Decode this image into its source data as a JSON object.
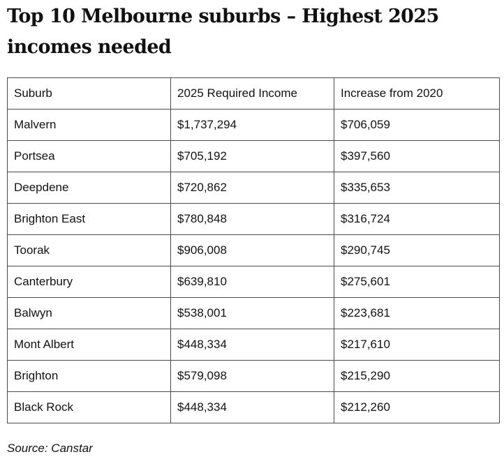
{
  "article": {
    "title": "Top 10 Melbourne suburbs – Highest 2025 incomes needed",
    "source": "Source: Canstar"
  },
  "table": {
    "headers": [
      "Suburb",
      "2025 Required Income",
      "Increase from 2020"
    ],
    "rows": [
      [
        "Malvern",
        "$1,737,294",
        "$706,059"
      ],
      [
        "Portsea",
        "$705,192",
        "$397,560"
      ],
      [
        "Deepdene",
        "$720,862",
        "$335,653"
      ],
      [
        "Brighton East",
        "$780,848",
        "$316,724"
      ],
      [
        "Toorak",
        "$906,008",
        "$290,745"
      ],
      [
        "Canterbury",
        "$639,810",
        "$275,601"
      ],
      [
        "Balwyn",
        "$538,001",
        "$223,681"
      ],
      [
        "Mont Albert",
        "$448,334",
        "$217,610"
      ],
      [
        "Brighton",
        "$579,098",
        "$215,290"
      ],
      [
        "Black Rock",
        "$448,334",
        "$212,260"
      ]
    ]
  }
}
